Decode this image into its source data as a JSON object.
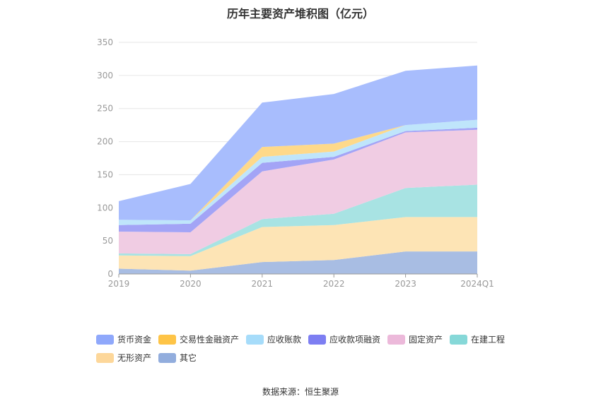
{
  "title": "历年主要资产堆积图（亿元）",
  "source": "数据来源：恒生聚源",
  "chart_data": {
    "type": "area",
    "stacked": true,
    "categories": [
      "2019",
      "2020",
      "2021",
      "2022",
      "2023",
      "2024Q1"
    ],
    "ylim": [
      0,
      350
    ],
    "yticks": [
      0,
      50,
      100,
      150,
      200,
      250,
      300,
      350
    ],
    "grid": true,
    "legend_position": "bottom",
    "series": [
      {
        "name": "其它",
        "color": "#a8bde3",
        "values": [
          8,
          5,
          18,
          21,
          34,
          34
        ]
      },
      {
        "name": "无形资产",
        "color": "#fde4b5",
        "values": [
          20,
          22,
          53,
          53,
          52,
          52
        ]
      },
      {
        "name": "在建工程",
        "color": "#a8e3e3",
        "values": [
          3,
          3,
          12,
          17,
          44,
          49
        ]
      },
      {
        "name": "固定资产",
        "color": "#f0cce3",
        "values": [
          33,
          33,
          72,
          82,
          84,
          83
        ]
      },
      {
        "name": "应收款项融资",
        "color": "#a3a4f6",
        "values": [
          10,
          13,
          13,
          4,
          2,
          3
        ]
      },
      {
        "name": "应收账款",
        "color": "#bfe5fb",
        "values": [
          8,
          5,
          9,
          8,
          9,
          12
        ]
      },
      {
        "name": "交易性金融资产",
        "color": "#fed98a",
        "values": [
          0,
          0,
          15,
          12,
          0,
          0
        ]
      },
      {
        "name": "货币资金",
        "color": "#a8bdfd",
        "values": [
          28,
          55,
          67,
          75,
          82,
          82
        ]
      }
    ]
  },
  "legend": [
    {
      "name": "货币资金",
      "color": "#8fa8fb"
    },
    {
      "name": "交易性金融资产",
      "color": "#fec447"
    },
    {
      "name": "应收账款",
      "color": "#a6dcfa"
    },
    {
      "name": "应收款项融资",
      "color": "#7d7ef2"
    },
    {
      "name": "固定资产",
      "color": "#ecb9da"
    },
    {
      "name": "在建工程",
      "color": "#86d8d8"
    },
    {
      "name": "无形资产",
      "color": "#fdd79a"
    },
    {
      "name": "其它",
      "color": "#92addd"
    }
  ]
}
